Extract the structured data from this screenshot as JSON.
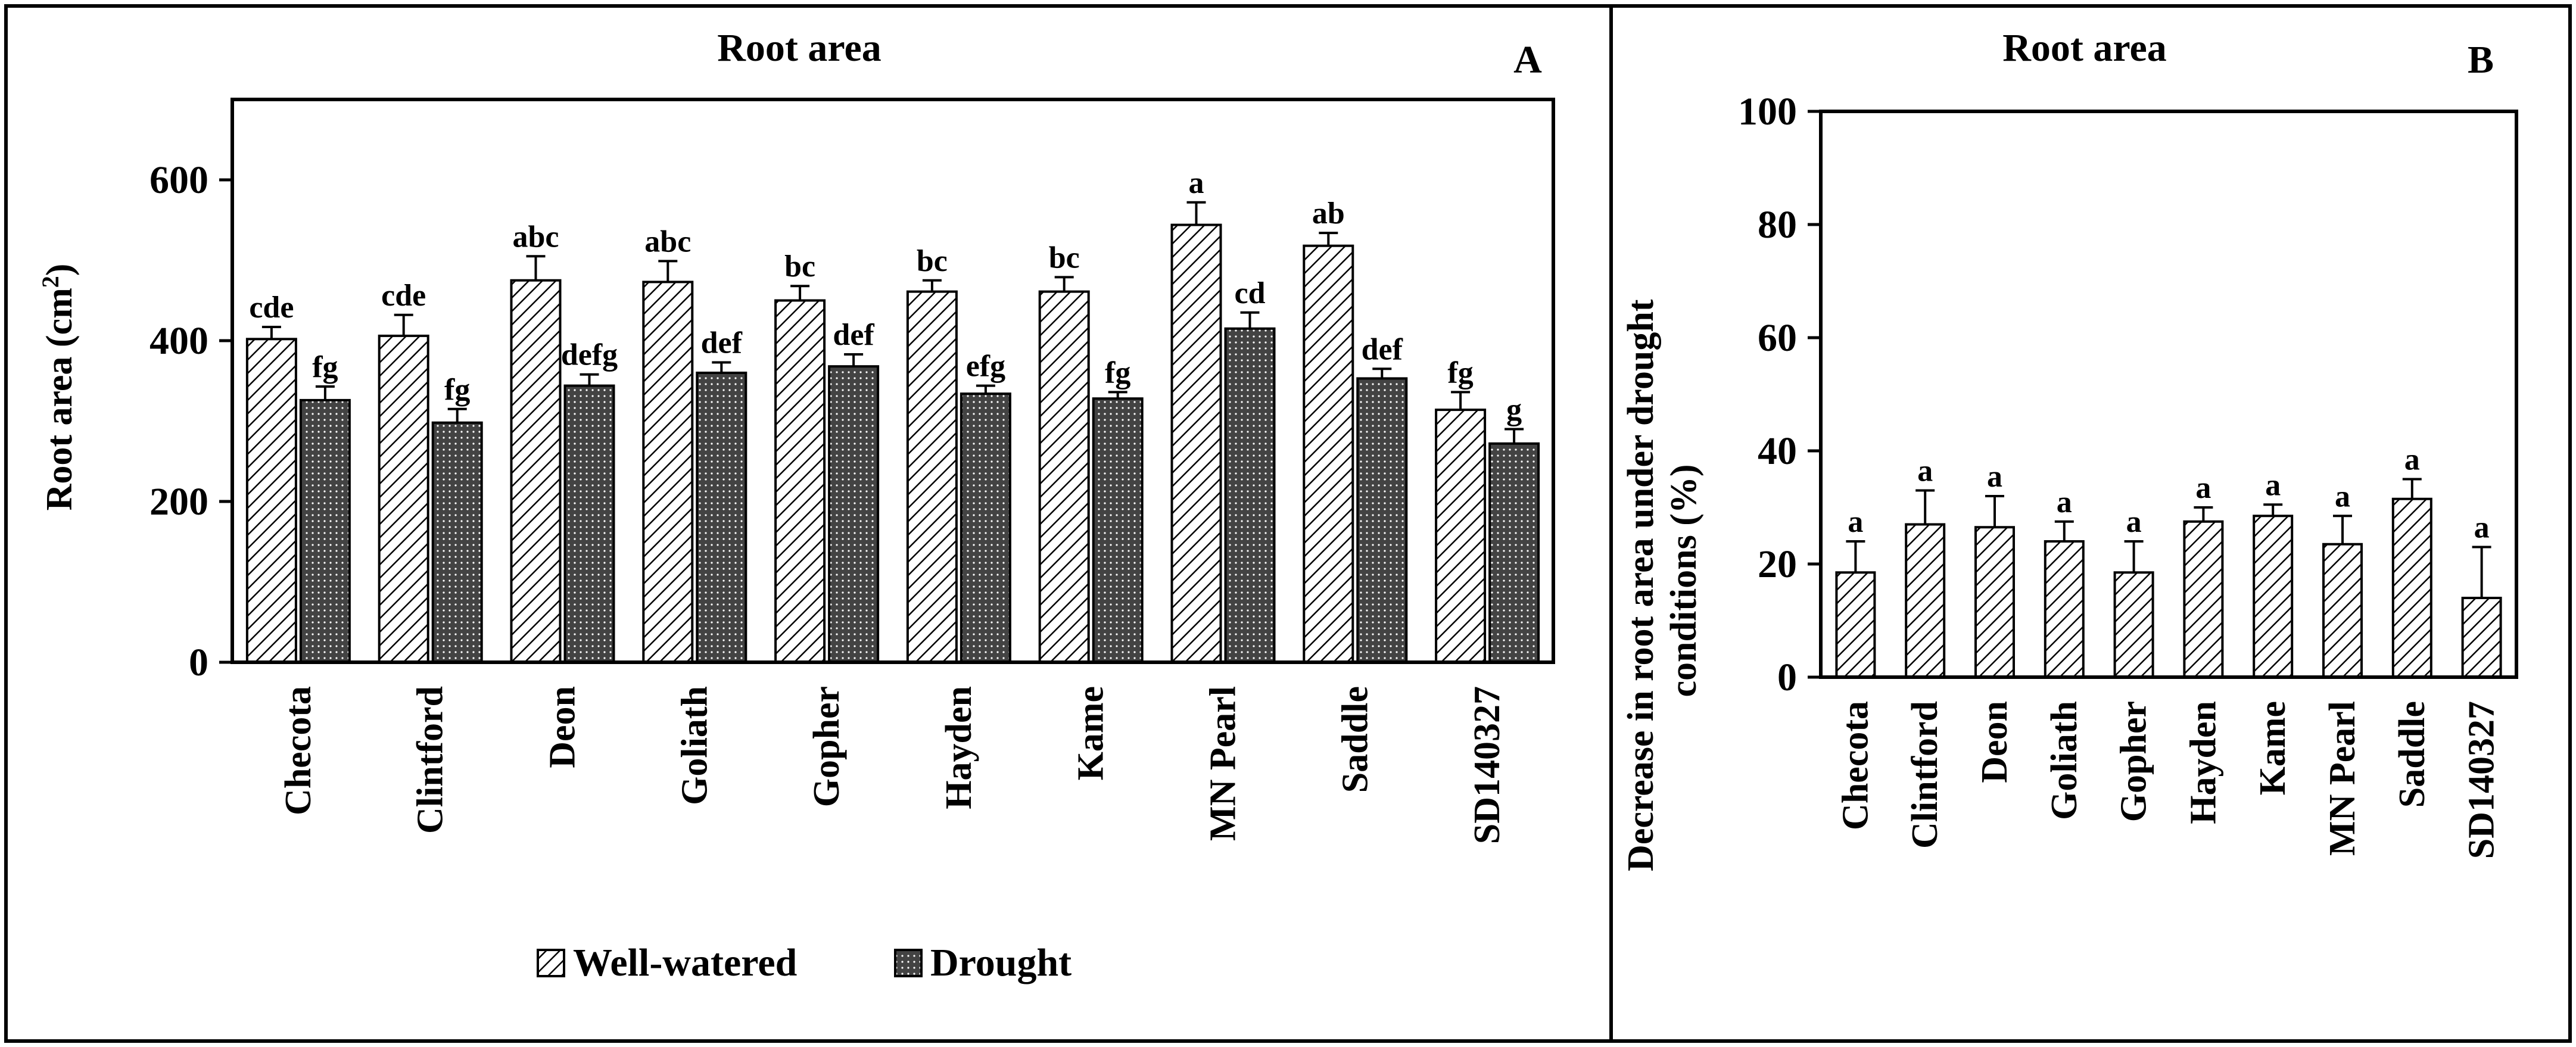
{
  "chart_data": [
    {
      "id": "A",
      "type": "bar",
      "title": "Root area",
      "panel_label": "A",
      "ylabel": "Root area (cm²)",
      "ylabel_main": "Root area (cm",
      "ylabel_sup": "2",
      "ylabel_tail": ")",
      "xlabel": "",
      "ylim": [
        0,
        700
      ],
      "yticks": [
        0,
        200,
        400,
        600
      ],
      "categories": [
        "Checota",
        "Clintford",
        "Deon",
        "Goliath",
        "Gopher",
        "Hayden",
        "Kame",
        "MN Pearl",
        "Saddle",
        "SD140327"
      ],
      "series": [
        {
          "name": "Well-watered",
          "pattern": "hatch",
          "values": [
            402,
            406,
            475,
            473,
            450,
            461,
            461,
            544,
            518,
            314
          ],
          "errors": [
            15,
            26,
            30,
            26,
            18,
            14,
            18,
            28,
            16,
            22
          ],
          "letters": [
            "cde",
            "cde",
            "abc",
            "abc",
            "bc",
            "bc",
            "bc",
            "a",
            "ab",
            "fg"
          ]
        },
        {
          "name": "Drought",
          "pattern": "grid",
          "values": [
            326,
            298,
            344,
            360,
            368,
            334,
            328,
            415,
            353,
            272
          ],
          "errors": [
            17,
            17,
            14,
            13,
            15,
            10,
            8,
            20,
            12,
            18
          ],
          "letters": [
            "fg",
            "fg",
            "defg",
            "def",
            "def",
            "efg",
            "fg",
            "cd",
            "def",
            "g"
          ]
        }
      ],
      "legend": [
        "Well-watered",
        "Drought"
      ],
      "legend_position": "bottom-center"
    },
    {
      "id": "B",
      "type": "bar",
      "title": "Root area",
      "panel_label": "B",
      "ylabel": "Decrease in root area under drought conditions (%)",
      "ylabel_line1": "Decrease in root area under drought",
      "ylabel_line2": "conditions (%)",
      "xlabel": "",
      "ylim": [
        0,
        100
      ],
      "yticks": [
        0,
        20,
        40,
        60,
        80,
        100
      ],
      "categories": [
        "Checota",
        "Clintford",
        "Deon",
        "Goliath",
        "Gopher",
        "Hayden",
        "Kame",
        "MN Pearl",
        "Saddle",
        "SD140327"
      ],
      "series": [
        {
          "name": "Decrease",
          "pattern": "hatch",
          "values": [
            18.5,
            27,
            26.5,
            24,
            18.5,
            27.5,
            28.5,
            23.5,
            31.5,
            14
          ],
          "errors": [
            5.5,
            6,
            5.5,
            3.5,
            5.5,
            2.5,
            2,
            5,
            3.5,
            9
          ],
          "letters": [
            "a",
            "a",
            "a",
            "a",
            "a",
            "a",
            "a",
            "a",
            "a",
            "a"
          ]
        }
      ]
    }
  ]
}
